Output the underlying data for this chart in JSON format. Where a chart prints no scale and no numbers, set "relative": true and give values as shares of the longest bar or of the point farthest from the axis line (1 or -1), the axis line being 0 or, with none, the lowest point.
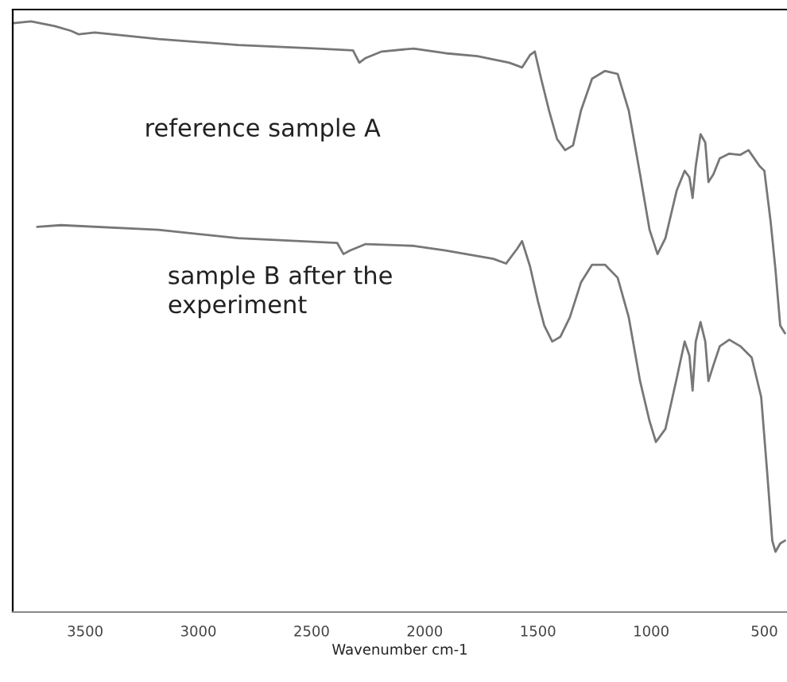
{
  "chart_data": {
    "type": "line",
    "relative": true,
    "xlabel": "Wavenumber cm-1",
    "xlim": [
      3820,
      400
    ],
    "xticks": [
      3500,
      3000,
      2500,
      2000,
      1500,
      1000,
      500
    ],
    "grid": false,
    "legend": false,
    "marker": "none",
    "line_style": "solid",
    "series": [
      {
        "name": "reference sample A",
        "color": "#777777",
        "x": [
          3817,
          3739,
          3634,
          3563,
          3528,
          3458,
          3176,
          2824,
          2472,
          2317,
          2289,
          2261,
          2190,
          2049,
          1908,
          1768,
          1627,
          1570,
          1535,
          1514,
          1486,
          1451,
          1416,
          1380,
          1345,
          1310,
          1261,
          1204,
          1148,
          1099,
          1049,
          1007,
          972,
          937,
          887,
          852,
          831,
          817,
          803,
          782,
          761,
          747,
          725,
          697,
          655,
          606,
          570,
          521,
          500,
          472,
          451,
          430,
          409
        ],
        "values": [
          0.997,
          1,
          0.992,
          0.984,
          0.978,
          0.981,
          0.97,
          0.96,
          0.954,
          0.951,
          0.93,
          0.938,
          0.949,
          0.954,
          0.946,
          0.941,
          0.93,
          0.922,
          0.943,
          0.949,
          0.903,
          0.849,
          0.801,
          0.782,
          0.79,
          0.849,
          0.903,
          0.916,
          0.911,
          0.849,
          0.741,
          0.647,
          0.606,
          0.633,
          0.714,
          0.747,
          0.736,
          0.701,
          0.755,
          0.809,
          0.795,
          0.728,
          0.741,
          0.768,
          0.776,
          0.774,
          0.782,
          0.755,
          0.747,
          0.66,
          0.58,
          0.485,
          0.472
        ]
      },
      {
        "name": "sample B after the\nexperiment",
        "color": "#777777",
        "x": [
          3712,
          3606,
          3176,
          2824,
          2387,
          2359,
          2331,
          2261,
          2049,
          1908,
          1697,
          1641,
          1592,
          1570,
          1535,
          1500,
          1472,
          1437,
          1401,
          1359,
          1310,
          1261,
          1204,
          1148,
          1099,
          1049,
          1007,
          979,
          937,
          887,
          852,
          831,
          817,
          803,
          782,
          761,
          747,
          725,
          697,
          655,
          606,
          556,
          514,
          486,
          465,
          451,
          430,
          409
        ],
        "values": [
          0.652,
          0.655,
          0.647,
          0.633,
          0.625,
          0.606,
          0.612,
          0.623,
          0.62,
          0.612,
          0.598,
          0.59,
          0.615,
          0.628,
          0.585,
          0.526,
          0.485,
          0.458,
          0.466,
          0.499,
          0.558,
          0.588,
          0.588,
          0.566,
          0.499,
          0.391,
          0.323,
          0.288,
          0.31,
          0.396,
          0.458,
          0.434,
          0.375,
          0.458,
          0.491,
          0.458,
          0.391,
          0.418,
          0.45,
          0.461,
          0.45,
          0.431,
          0.364,
          0.229,
          0.121,
          0.102,
          0.116,
          0.121
        ]
      }
    ]
  }
}
